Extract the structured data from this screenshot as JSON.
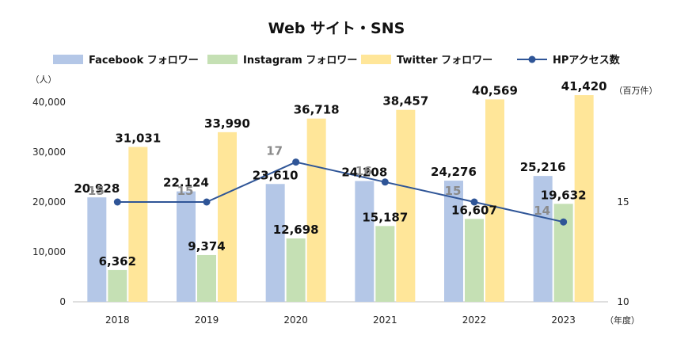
{
  "chart_data": {
    "type": "bar",
    "title": "Web サイト・SNS",
    "categories": [
      "2018",
      "2019",
      "2020",
      "2021",
      "2022",
      "2023"
    ],
    "xunit": "（年度）",
    "y_left": {
      "unit": "（人）",
      "lim": [
        0,
        40000
      ],
      "ticks": [
        "0",
        "10,000",
        "20,000",
        "30,000",
        "40,000"
      ]
    },
    "y_right": {
      "unit": "（百万件）",
      "lim": [
        10,
        20
      ],
      "ticks": [
        "10",
        "15"
      ]
    },
    "series": [
      {
        "name": "Facebook フォロワー",
        "kind": "bar",
        "axis": "left",
        "color": "#b4c7e7",
        "values": [
          20928,
          22124,
          23610,
          24208,
          24276,
          25216
        ],
        "labels": [
          "20,928",
          "22,124",
          "23,610",
          "24,208",
          "24,276",
          "25,216"
        ]
      },
      {
        "name": "Instagram フォロワー",
        "kind": "bar",
        "axis": "left",
        "color": "#c5e0b4",
        "values": [
          6362,
          9374,
          12698,
          15187,
          16607,
          19632
        ],
        "labels": [
          "6,362",
          "9,374",
          "12,698",
          "15,187",
          "16,607",
          "19,632"
        ]
      },
      {
        "name": "Twitter フォロワー",
        "kind": "bar",
        "axis": "left",
        "color": "#ffe699",
        "values": [
          31031,
          33990,
          36718,
          38457,
          40569,
          41420
        ],
        "labels": [
          "31,031",
          "33,990",
          "36,718",
          "38,457",
          "40,569",
          "41,420"
        ]
      },
      {
        "name": "HPアクセス数",
        "kind": "line",
        "axis": "right",
        "color": "#2f5597",
        "values": [
          15,
          15,
          17,
          16,
          15,
          14
        ],
        "labels": [
          "15",
          "15",
          "17",
          "16",
          "15",
          "14"
        ]
      }
    ],
    "legend_position": "top",
    "grid": false
  }
}
